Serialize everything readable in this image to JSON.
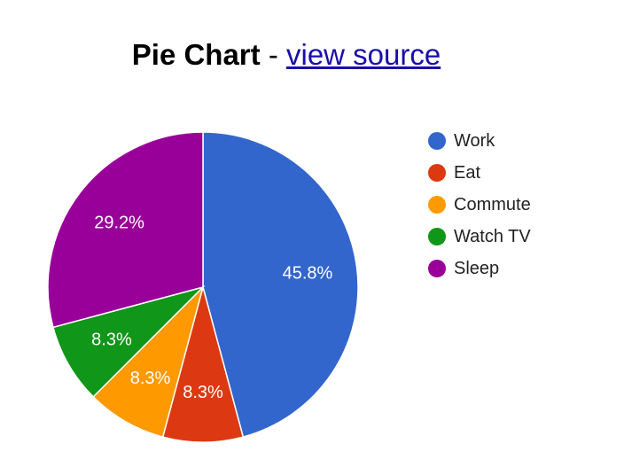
{
  "header": {
    "title": "Pie Chart",
    "separator": "-",
    "link_text": "view source"
  },
  "chart_data": {
    "type": "pie",
    "title": "",
    "categories": [
      "Work",
      "Eat",
      "Commute",
      "Watch TV",
      "Sleep"
    ],
    "values": [
      11,
      2,
      2,
      2,
      7
    ],
    "labels": [
      "45.8%",
      "8.3%",
      "8.3%",
      "8.3%",
      "29.2%"
    ],
    "colors": [
      "#3366cc",
      "#dc3912",
      "#ff9900",
      "#109618",
      "#990099"
    ],
    "start_angle_deg": 0,
    "direction": "clockwise",
    "legend": {
      "position": "right",
      "entries": [
        "Work",
        "Eat",
        "Commute",
        "Watch TV",
        "Sleep"
      ]
    }
  }
}
